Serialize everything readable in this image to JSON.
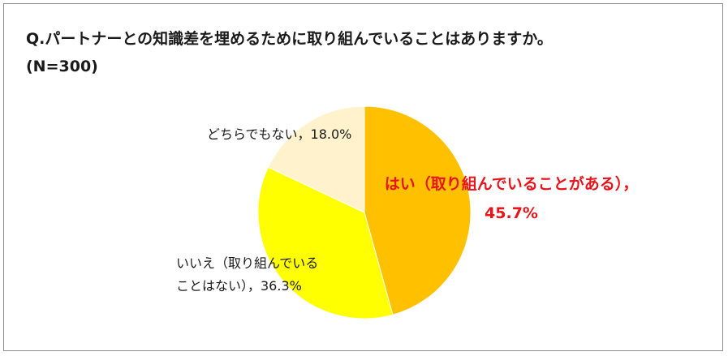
{
  "chart_data": {
    "type": "pie",
    "title": "Q.パートナーとの知識差を埋めるために取り組んでいることはありますか。",
    "subtitle": "(N=300)",
    "slices": [
      {
        "label_lines": [
          "はい（取り組んでいることがある），",
          "45.7%"
        ],
        "value": 45.7,
        "color": "#ffc000",
        "label_color": "#e8141b"
      },
      {
        "label_lines": [
          "いいえ（取り組んでいる",
          "ことはない），36.3%"
        ],
        "value": 36.3,
        "color": "#ffff00",
        "label_color": "#1a1a1a"
      },
      {
        "label_lines": [
          "どちらでもない，18.0%"
        ],
        "value": 18.0,
        "color": "#fff2cc",
        "label_color": "#1a1a1a"
      }
    ]
  }
}
